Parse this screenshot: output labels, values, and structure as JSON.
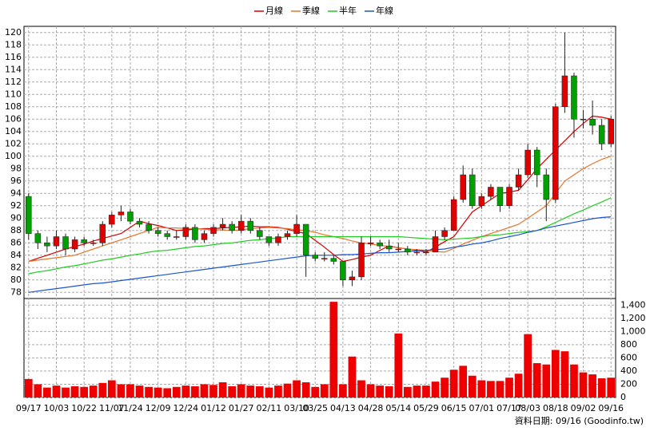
{
  "chart_data": [
    {
      "type": "candlestick",
      "legend": "top",
      "grid": true,
      "categories": [
        "09/17",
        null,
        null,
        "10/03",
        null,
        null,
        "10/22",
        null,
        null,
        "11/07",
        null,
        "11/24",
        null,
        null,
        "12/09",
        null,
        null,
        "12/24",
        null,
        null,
        "01/12",
        null,
        null,
        "01/27",
        null,
        null,
        "02/11",
        null,
        null,
        "03/10",
        null,
        "03/25",
        null,
        null,
        "04/13",
        null,
        null,
        "04/28",
        null,
        null,
        "05/14",
        null,
        null,
        "05/29",
        null,
        null,
        "06/15",
        null,
        null,
        "07/01",
        null,
        null,
        "07/17",
        null,
        "08/03",
        null,
        null,
        "08/18",
        null,
        null,
        "09/02",
        null,
        null,
        "09/16"
      ],
      "open": [
        93.5,
        87.5,
        86,
        85.5,
        87,
        85,
        86.5,
        86,
        86,
        89,
        90.5,
        91,
        89.5,
        89,
        88,
        87.5,
        87,
        87,
        88.5,
        86.5,
        87.5,
        88.5,
        89,
        88,
        89.5,
        88,
        87,
        86,
        87,
        87.5,
        89,
        84,
        83.5,
        83.5,
        83,
        80,
        80.5,
        86,
        86,
        85.5,
        85,
        85,
        84.5,
        84.5,
        84.5,
        87,
        88,
        93,
        97,
        92,
        93.5,
        95,
        92,
        95,
        97,
        101,
        97,
        93,
        108,
        113,
        106,
        106,
        105,
        102
      ],
      "high": [
        94,
        88,
        87,
        88,
        87.5,
        87,
        87,
        86.5,
        89.5,
        91,
        92,
        91.5,
        90,
        89.5,
        88.5,
        88,
        88,
        89,
        89,
        88,
        89,
        90,
        89.5,
        90.5,
        90,
        88.5,
        87,
        87.5,
        88,
        90.5,
        89,
        84.5,
        84.5,
        84,
        83,
        81.5,
        87,
        87,
        86.5,
        86.5,
        86,
        85.5,
        85,
        85,
        88,
        88.5,
        93.5,
        98.5,
        98,
        94,
        95.5,
        95,
        95.5,
        98,
        102,
        101.5,
        98,
        108.5,
        120,
        113.5,
        107.5,
        109,
        106,
        106.5
      ],
      "low": [
        86.5,
        85,
        84.5,
        85,
        84,
        84.5,
        85.5,
        85.5,
        85.5,
        88.5,
        89.5,
        89,
        88.5,
        87.5,
        87,
        86.5,
        86.5,
        86.5,
        86,
        86,
        87,
        88,
        87.5,
        87.5,
        87.5,
        86.5,
        85.5,
        85.5,
        86.5,
        87,
        80.5,
        83,
        83,
        82.5,
        79,
        79,
        80,
        85.5,
        85,
        84.5,
        84.5,
        84,
        84,
        84,
        84.5,
        86.5,
        88,
        92.5,
        91.5,
        91.5,
        93,
        91,
        91.5,
        94.5,
        96.5,
        95,
        89.5,
        92.5,
        107,
        103,
        104.5,
        103.5,
        101,
        101.5
      ],
      "close": [
        87.5,
        86,
        85.5,
        87,
        85,
        86.5,
        86,
        86,
        89,
        90.5,
        91,
        89.5,
        89,
        88,
        87.5,
        87,
        87,
        88.5,
        86.5,
        87.5,
        88.5,
        89,
        88,
        89.5,
        88,
        87,
        86,
        87,
        87.5,
        89,
        84,
        83.5,
        83.5,
        83,
        80,
        80.5,
        86,
        86,
        85.5,
        85,
        85,
        84.5,
        84.5,
        84.5,
        87,
        88,
        93,
        97,
        92,
        93.5,
        95,
        92,
        95,
        97,
        101,
        97,
        93,
        108,
        113,
        106,
        106,
        105,
        102,
        106
      ],
      "series": [
        {
          "name": "月線",
          "color": "#d40000",
          "values": [
            83,
            83.5,
            84,
            84.5,
            85,
            85.4,
            85.8,
            86.3,
            86.7,
            87.1,
            87.5,
            88.5,
            89.5,
            89.1,
            88.8,
            88.4,
            88,
            88.1,
            88.2,
            88.3,
            88.3,
            88.4,
            88.5,
            88.6,
            88.7,
            88.6,
            88.6,
            88.5,
            88.2,
            87.8,
            87.5,
            86.4,
            85.3,
            84.1,
            83,
            83.3,
            83.7,
            84,
            84.8,
            85.5,
            85.2,
            85,
            84.8,
            84.5,
            85.3,
            86.2,
            87,
            89,
            91,
            92,
            93,
            94,
            94.2,
            94.5,
            96.2,
            98,
            99.5,
            101,
            102.5,
            104,
            105.3,
            106.5,
            106.3,
            106
          ]
        },
        {
          "name": "季線",
          "color": "#e8742a",
          "values": [
            83,
            83.2,
            83.4,
            83.6,
            83.8,
            84,
            84.5,
            85,
            85.5,
            86,
            86.5,
            87,
            87.5,
            88,
            88.5,
            88.4,
            88.4,
            88.3,
            88.3,
            88.2,
            88.1,
            88.1,
            88,
            88.1,
            88.3,
            88.4,
            88.5,
            88.4,
            88.3,
            88.1,
            88,
            87.7,
            87.3,
            87,
            86.7,
            86.3,
            86,
            85.8,
            85.6,
            85.4,
            85.2,
            85,
            84.9,
            84.8,
            84.6,
            84.5,
            85.1,
            85.8,
            86.4,
            87,
            87.5,
            88,
            88.5,
            89,
            90,
            91,
            92,
            94,
            96,
            97,
            98,
            98.8,
            99.5,
            100
          ]
        },
        {
          "name": "半年",
          "color": "#22cc22",
          "values": [
            81,
            81.3,
            81.5,
            81.8,
            82.1,
            82.3,
            82.6,
            82.9,
            83.2,
            83.4,
            83.7,
            84,
            84.2,
            84.5,
            84.7,
            84.8,
            85,
            85.2,
            85.4,
            85.5,
            85.7,
            85.9,
            86,
            86.2,
            86.4,
            86.5,
            86.7,
            86.8,
            87,
            87,
            87,
            87,
            87,
            87,
            87,
            87,
            87,
            87,
            87,
            87,
            87,
            86.9,
            86.8,
            86.7,
            86.6,
            86.5,
            86.6,
            86.7,
            86.8,
            87,
            87.2,
            87.3,
            87.5,
            87.7,
            87.8,
            88,
            88.6,
            89.3,
            90,
            90.7,
            91.3,
            92,
            92.6,
            93.3
          ]
        },
        {
          "name": "年線",
          "color": "#1a55d0",
          "values": [
            78,
            78.2,
            78.4,
            78.6,
            78.8,
            79,
            79.2,
            79.4,
            79.5,
            79.7,
            79.9,
            80.1,
            80.3,
            80.5,
            80.7,
            80.9,
            81.1,
            81.3,
            81.5,
            81.7,
            81.9,
            82.1,
            82.3,
            82.5,
            82.7,
            82.9,
            83.1,
            83.3,
            83.5,
            83.7,
            83.9,
            84,
            84,
            84,
            84.1,
            84.1,
            84.2,
            84.3,
            84.4,
            84.4,
            84.5,
            84.6,
            84.7,
            84.8,
            84.9,
            85,
            85.3,
            85.5,
            85.8,
            86,
            86.3,
            86.7,
            87,
            87.3,
            87.7,
            88,
            88.4,
            88.7,
            89,
            89.3,
            89.6,
            89.9,
            90.1,
            90.2
          ]
        }
      ],
      "up_color": "#e00000",
      "down_color": "#00a000",
      "ylim": [
        77,
        121
      ],
      "yticks": [
        78,
        80,
        82,
        84,
        86,
        88,
        90,
        92,
        94,
        96,
        98,
        100,
        102,
        104,
        106,
        108,
        110,
        112,
        114,
        116,
        118,
        120
      ]
    },
    {
      "type": "bar",
      "grid": true,
      "color": "#ee0000",
      "values": [
        280,
        200,
        150,
        180,
        150,
        170,
        160,
        180,
        220,
        260,
        200,
        200,
        180,
        160,
        150,
        140,
        160,
        180,
        170,
        200,
        190,
        230,
        170,
        200,
        180,
        170,
        150,
        180,
        210,
        260,
        230,
        160,
        200,
        1450,
        200,
        620,
        260,
        200,
        180,
        170,
        970,
        160,
        180,
        180,
        240,
        300,
        420,
        480,
        330,
        260,
        250,
        250,
        300,
        360,
        960,
        520,
        500,
        720,
        700,
        500,
        380,
        350,
        290,
        300
      ],
      "ylim": [
        0,
        1500
      ],
      "yticks": [
        0,
        200,
        400,
        600,
        800,
        {
          "value": 1000,
          "label": "1,000"
        },
        {
          "value": 1200,
          "label": "1,200"
        },
        {
          "value": 1400,
          "label": "1,400"
        }
      ]
    }
  ],
  "footer": "資料日期: 09/16 (Goodinfo.tw)"
}
